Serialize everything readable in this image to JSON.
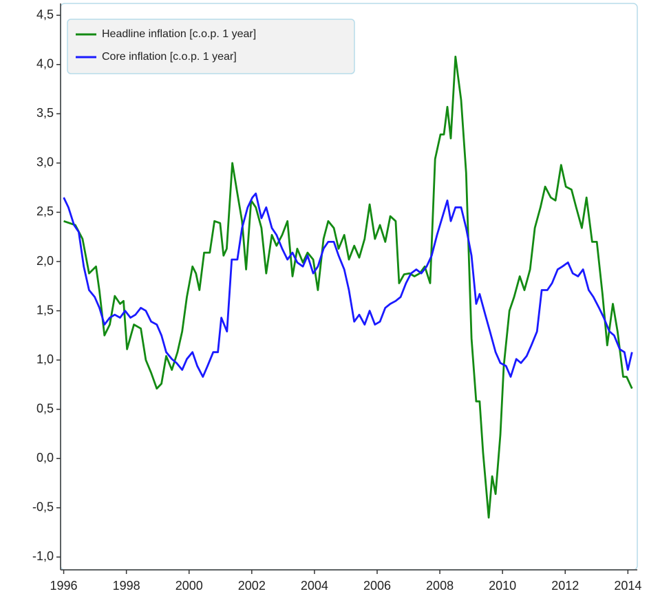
{
  "chart_data": {
    "type": "line",
    "xlim": [
      1995.9,
      2014.3
    ],
    "ylim": [
      -1.13,
      4.62
    ],
    "xticks": [
      1996,
      1998,
      2000,
      2002,
      2004,
      2006,
      2008,
      2010,
      2012,
      2014
    ],
    "yticks": [
      {
        "value": 4.5,
        "label": "4,5"
      },
      {
        "value": 4,
        "label": "4,0"
      },
      {
        "value": 3.5,
        "label": "3,5"
      },
      {
        "value": 3,
        "label": "3,0"
      },
      {
        "value": 2.5,
        "label": "2,5"
      },
      {
        "value": 2,
        "label": "2,0"
      },
      {
        "value": 1.5,
        "label": "1,5"
      },
      {
        "value": 1,
        "label": "1,0"
      },
      {
        "value": 0.5,
        "label": "0,5"
      },
      {
        "value": 0,
        "label": "0,0"
      },
      {
        "value": -0.5,
        "label": "-0,5"
      },
      {
        "value": -1,
        "label": "-1,0"
      }
    ],
    "legend": "upper left",
    "series": [
      {
        "name": "Headline inflation [c.o.p. 1 year]",
        "color": "#138a13",
        "x": [
          1996.0,
          1996.37,
          1996.6,
          1996.81,
          1997.03,
          1997.14,
          1997.3,
          1997.47,
          1997.63,
          1997.8,
          1997.91,
          1998.02,
          1998.24,
          1998.46,
          1998.62,
          1998.79,
          1998.97,
          1999.12,
          1999.27,
          1999.45,
          1999.63,
          1999.78,
          1999.93,
          2000.11,
          2000.22,
          2000.33,
          2000.48,
          2000.66,
          2000.81,
          2000.99,
          2001.1,
          2001.2,
          2001.38,
          2001.54,
          2001.69,
          2001.82,
          2001.98,
          2002.13,
          2002.31,
          2002.46,
          2002.64,
          2002.79,
          2002.97,
          2003.14,
          2003.3,
          2003.45,
          2003.63,
          2003.78,
          2003.96,
          2004.11,
          2004.29,
          2004.44,
          2004.62,
          2004.77,
          2004.95,
          2005.1,
          2005.27,
          2005.43,
          2005.6,
          2005.76,
          2005.93,
          2006.09,
          2006.26,
          2006.42,
          2006.59,
          2006.7,
          2006.86,
          2007.03,
          2007.19,
          2007.36,
          2007.52,
          2007.69,
          2007.85,
          2008.02,
          2008.13,
          2008.24,
          2008.35,
          2008.5,
          2008.68,
          2008.84,
          2009.01,
          2009.16,
          2009.27,
          2009.38,
          2009.56,
          2009.67,
          2009.78,
          2009.93,
          2010.04,
          2010.22,
          2010.37,
          2010.55,
          2010.7,
          2010.88,
          2011.03,
          2011.21,
          2011.36,
          2011.54,
          2011.69,
          2011.87,
          2012.02,
          2012.2,
          2012.35,
          2012.53,
          2012.68,
          2012.86,
          2013.01,
          2013.19,
          2013.34,
          2013.52,
          2013.67,
          2013.85,
          2013.96,
          2014.13
        ],
        "values": [
          2.41,
          2.37,
          2.23,
          1.88,
          1.95,
          1.7,
          1.25,
          1.36,
          1.65,
          1.57,
          1.6,
          1.11,
          1.36,
          1.32,
          1.0,
          0.87,
          0.71,
          0.76,
          1.04,
          0.9,
          1.08,
          1.29,
          1.64,
          1.95,
          1.88,
          1.71,
          2.09,
          2.09,
          2.41,
          2.39,
          2.06,
          2.13,
          3.0,
          2.69,
          2.41,
          1.92,
          2.62,
          2.55,
          2.34,
          1.88,
          2.27,
          2.16,
          2.27,
          2.41,
          1.85,
          2.13,
          1.99,
          2.09,
          2.02,
          1.71,
          2.23,
          2.41,
          2.34,
          2.13,
          2.27,
          2.02,
          2.16,
          2.04,
          2.23,
          2.58,
          2.23,
          2.37,
          2.2,
          2.46,
          2.41,
          1.78,
          1.87,
          1.88,
          1.85,
          1.88,
          1.95,
          1.78,
          3.04,
          3.29,
          3.29,
          3.57,
          3.25,
          4.08,
          3.64,
          2.9,
          1.22,
          0.58,
          0.58,
          0.06,
          -0.6,
          -0.18,
          -0.36,
          0.24,
          0.94,
          1.5,
          1.64,
          1.85,
          1.71,
          1.92,
          2.34,
          2.55,
          2.76,
          2.65,
          2.62,
          2.98,
          2.76,
          2.73,
          2.55,
          2.34,
          2.65,
          2.2,
          2.2,
          1.67,
          1.15,
          1.57,
          1.29,
          0.83,
          0.83,
          0.71
        ]
      },
      {
        "name": "Core inflation [c.o.p. 1 year]",
        "color": "#1a1aff",
        "x": [
          1996.0,
          1996.15,
          1996.33,
          1996.48,
          1996.64,
          1996.81,
          1996.99,
          1997.14,
          1997.3,
          1997.47,
          1997.63,
          1997.8,
          1997.96,
          1998.13,
          1998.29,
          1998.46,
          1998.62,
          1998.79,
          1998.97,
          1999.12,
          1999.27,
          1999.45,
          1999.6,
          1999.78,
          1999.93,
          2000.11,
          2000.26,
          2000.44,
          2000.59,
          2000.77,
          2000.92,
          2001.03,
          2001.21,
          2001.36,
          2001.54,
          2001.69,
          2001.87,
          2002.02,
          2002.13,
          2002.31,
          2002.46,
          2002.64,
          2002.79,
          2002.97,
          2003.14,
          2003.3,
          2003.45,
          2003.63,
          2003.78,
          2003.96,
          2004.11,
          2004.29,
          2004.44,
          2004.62,
          2004.77,
          2004.95,
          2005.1,
          2005.27,
          2005.43,
          2005.6,
          2005.76,
          2005.93,
          2006.09,
          2006.26,
          2006.42,
          2006.59,
          2006.75,
          2006.92,
          2007.08,
          2007.25,
          2007.41,
          2007.58,
          2007.74,
          2007.91,
          2008.07,
          2008.24,
          2008.35,
          2008.5,
          2008.68,
          2008.84,
          2009.01,
          2009.16,
          2009.27,
          2009.45,
          2009.6,
          2009.78,
          2009.93,
          2010.11,
          2010.26,
          2010.44,
          2010.59,
          2010.77,
          2010.92,
          2011.1,
          2011.25,
          2011.43,
          2011.58,
          2011.76,
          2011.91,
          2012.09,
          2012.24,
          2012.41,
          2012.57,
          2012.75,
          2012.9,
          2013.08,
          2013.23,
          2013.41,
          2013.56,
          2013.74,
          2013.89,
          2014.0,
          2014.13
        ],
        "values": [
          2.65,
          2.55,
          2.37,
          2.3,
          1.95,
          1.71,
          1.64,
          1.53,
          1.36,
          1.43,
          1.46,
          1.43,
          1.5,
          1.43,
          1.46,
          1.53,
          1.5,
          1.39,
          1.36,
          1.25,
          1.08,
          1.01,
          0.97,
          0.9,
          1.01,
          1.08,
          0.94,
          0.83,
          0.94,
          1.08,
          1.08,
          1.43,
          1.29,
          2.02,
          2.02,
          2.34,
          2.55,
          2.65,
          2.69,
          2.44,
          2.55,
          2.34,
          2.27,
          2.13,
          2.02,
          2.09,
          1.99,
          1.95,
          2.06,
          1.88,
          1.95,
          2.13,
          2.2,
          2.2,
          2.06,
          1.92,
          1.71,
          1.39,
          1.46,
          1.36,
          1.5,
          1.36,
          1.39,
          1.53,
          1.57,
          1.6,
          1.64,
          1.78,
          1.88,
          1.92,
          1.88,
          1.95,
          2.06,
          2.27,
          2.44,
          2.62,
          2.41,
          2.55,
          2.55,
          2.34,
          2.06,
          1.57,
          1.67,
          1.46,
          1.29,
          1.08,
          0.97,
          0.94,
          0.83,
          1.01,
          0.97,
          1.04,
          1.15,
          1.29,
          1.71,
          1.71,
          1.78,
          1.92,
          1.95,
          1.99,
          1.88,
          1.85,
          1.92,
          1.71,
          1.64,
          1.53,
          1.43,
          1.29,
          1.25,
          1.11,
          1.08,
          0.9,
          1.08
        ]
      }
    ]
  }
}
